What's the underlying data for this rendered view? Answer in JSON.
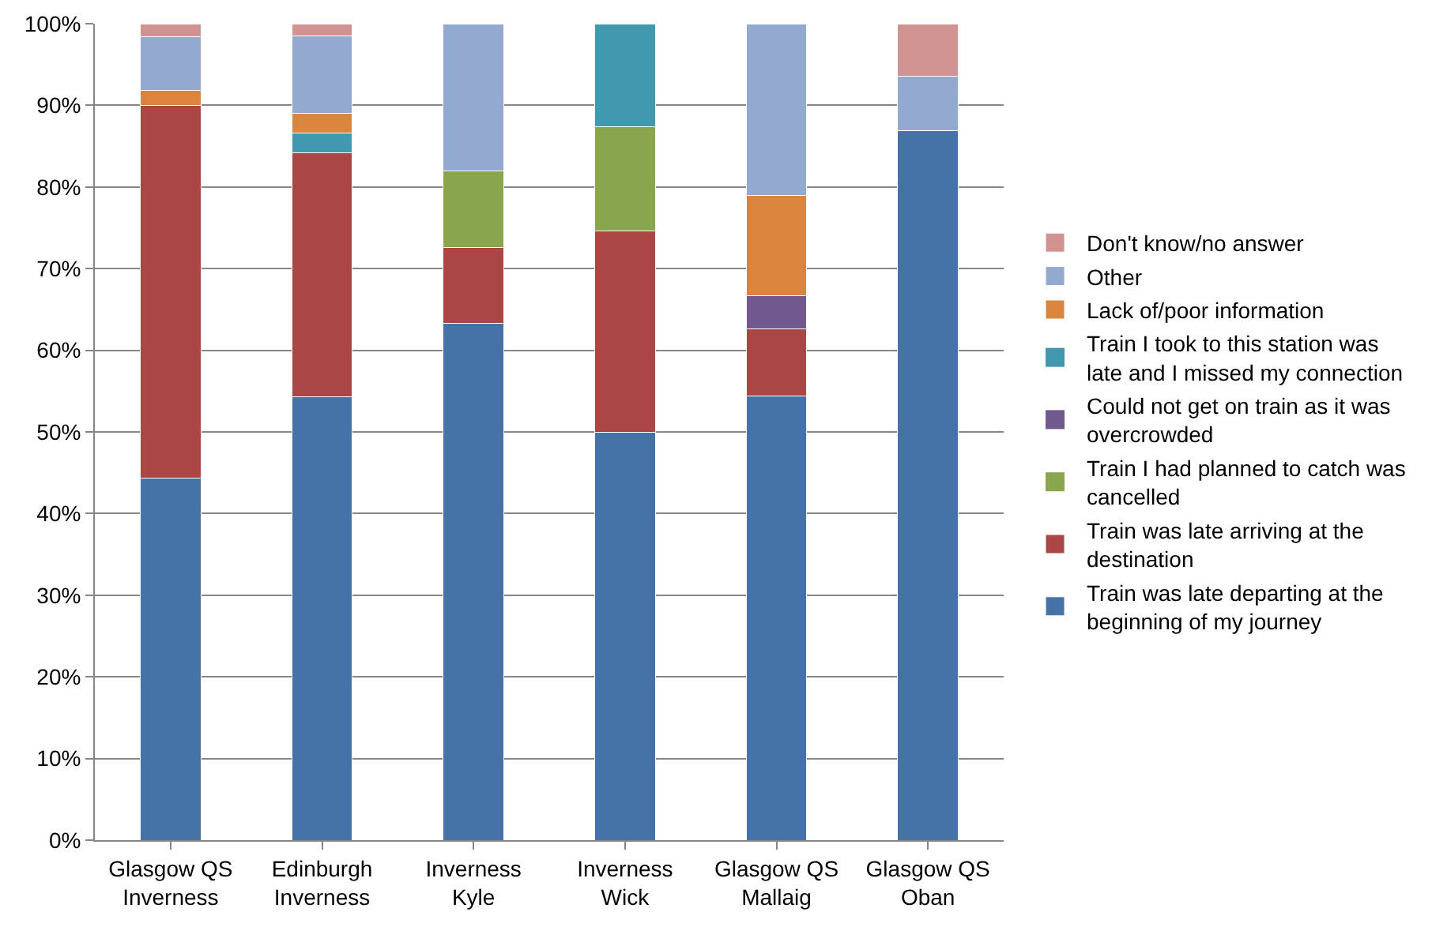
{
  "chart_data": {
    "type": "bar",
    "stacked": true,
    "categories": [
      "Glasgow QS Inverness",
      "Edinburgh Inverness",
      "Inverness Kyle",
      "Inverness Wick",
      "Glasgow QS Mallaig",
      "Glasgow QS Oban"
    ],
    "series": [
      {
        "name": "Train was late departing at the beginning of my journey",
        "color": "#4572a7",
        "values": [
          44.3,
          54.3,
          63.3,
          50,
          54.4,
          86.9
        ]
      },
      {
        "name": "Train was late arriving at the destination",
        "color": "#aa4643",
        "values": [
          45.7,
          29.9,
          9.3,
          24.6,
          8.2,
          0
        ]
      },
      {
        "name": "Train I had planned to catch was cancelled",
        "color": "#89a54e",
        "values": [
          0,
          0,
          9.4,
          12.8,
          0,
          0
        ]
      },
      {
        "name": "Could not get on train as it was overcrowded",
        "color": "#71588f",
        "values": [
          0,
          0,
          0,
          0,
          4.1,
          0
        ]
      },
      {
        "name": "Train I took to this station was late and I missed my connection",
        "color": "#4198af",
        "values": [
          0,
          2.4,
          0,
          12.6,
          0,
          0
        ]
      },
      {
        "name": "Lack of/poor information",
        "color": "#db843d",
        "values": [
          1.8,
          2.4,
          0,
          0,
          12.3,
          0
        ]
      },
      {
        "name": "Other",
        "color": "#93a9cf",
        "values": [
          6.6,
          9.5,
          18,
          0,
          21,
          6.7
        ]
      },
      {
        "name": "Don't know/no answer",
        "color": "#d19392",
        "values": [
          1.6,
          1.5,
          0,
          0,
          0,
          6.4
        ]
      }
    ],
    "ylim": [
      0,
      100
    ],
    "yticks": [
      {
        "value": 0,
        "label": "0%"
      },
      {
        "value": 10,
        "label": "10%"
      },
      {
        "value": 20,
        "label": "20%"
      },
      {
        "value": 30,
        "label": "30%"
      },
      {
        "value": 40,
        "label": "40%"
      },
      {
        "value": 50,
        "label": "50%"
      },
      {
        "value": 60,
        "label": "60%"
      },
      {
        "value": 70,
        "label": "70%"
      },
      {
        "value": 80,
        "label": "80%"
      },
      {
        "value": 90,
        "label": "90%"
      },
      {
        "value": 100,
        "label": "100%"
      }
    ],
    "grid": "y",
    "legend": "right"
  }
}
